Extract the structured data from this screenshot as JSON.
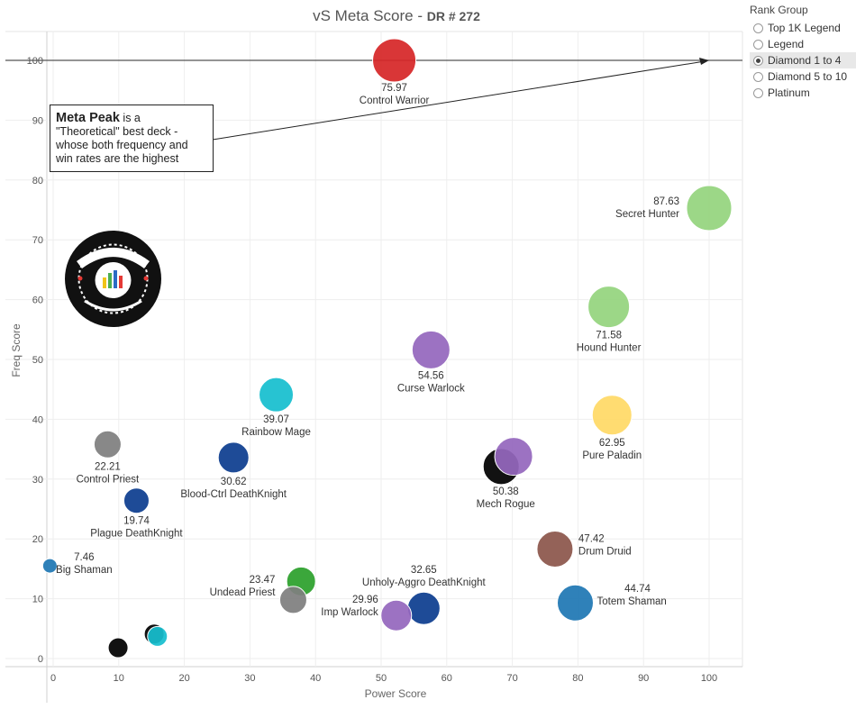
{
  "title": {
    "main": "vS Meta Score",
    "sep": " - ",
    "dr": "DR # 272"
  },
  "annotation": {
    "strong": "Meta Peak",
    "rest": " is a \"Theoretical\" best deck - whose both frequency and win rates are the highest"
  },
  "legend": {
    "title": "Rank Group",
    "items": [
      {
        "label": "Top 1K Legend",
        "selected": false
      },
      {
        "label": "Legend",
        "selected": false
      },
      {
        "label": "Diamond 1 to 4",
        "selected": true
      },
      {
        "label": "Diamond 5 to 10",
        "selected": false
      },
      {
        "label": "Platinum",
        "selected": false
      }
    ]
  },
  "logo": {
    "text": "DATA REAPER REPORT",
    "subtext": "VICIOUS SYNDICATE PRESENTS"
  },
  "chart_data": {
    "type": "scatter",
    "xlabel": "Power Score",
    "ylabel": "Freq Score",
    "xlim": [
      0,
      100
    ],
    "ylim": [
      0,
      100
    ],
    "xticks": [
      0,
      10,
      20,
      30,
      40,
      50,
      60,
      70,
      80,
      90,
      100
    ],
    "yticks": [
      0,
      10,
      20,
      30,
      40,
      50,
      60,
      70,
      80,
      90,
      100
    ],
    "grid": true,
    "reference_line_y": 100,
    "meta_peak": {
      "x": 100,
      "y": 100
    },
    "points": [
      {
        "name": "Control Warrior",
        "value": "75.97",
        "x": 52.0,
        "y": 100.0,
        "color": "#d62728",
        "size": 24
      },
      {
        "name": "Secret Hunter",
        "value": "87.63",
        "x": 100.0,
        "y": 75.3,
        "color": "#95d47e",
        "size": 25
      },
      {
        "name": "Hound Hunter",
        "value": "71.58",
        "x": 84.7,
        "y": 58.8,
        "color": "#95d47e",
        "size": 23
      },
      {
        "name": "Curse Warlock",
        "value": "54.56",
        "x": 57.6,
        "y": 51.6,
        "color": "#9467bd",
        "size": 21
      },
      {
        "name": "Pure Paladin",
        "value": "62.95",
        "x": 85.2,
        "y": 40.7,
        "color": "#ffd966",
        "size": 22
      },
      {
        "name": "Rainbow Mage",
        "value": "39.07",
        "x": 34.0,
        "y": 44.1,
        "color": "#17becf",
        "size": 19
      },
      {
        "name": "Control Priest",
        "value": "22.21",
        "x": 8.3,
        "y": 35.8,
        "color": "#7f7f7f",
        "size": 15
      },
      {
        "name": "Blood-Ctrl DeathKnight",
        "value": "30.62",
        "x": 27.5,
        "y": 33.6,
        "color": "#0d3d8f",
        "size": 17
      },
      {
        "name": "Mech Rogue",
        "value": "50.38",
        "x": 68.3,
        "y": 32.1,
        "color": "#000000",
        "size": 20
      },
      {
        "name": "",
        "value": "",
        "x": 70.2,
        "y": 33.8,
        "color": "#9467bd",
        "size": 21
      },
      {
        "name": "Plague DeathKnight",
        "value": "19.74",
        "x": 12.7,
        "y": 26.4,
        "color": "#0d3d8f",
        "size": 14
      },
      {
        "name": "Drum Druid",
        "value": "47.42",
        "x": 76.5,
        "y": 18.3,
        "color": "#8c564b",
        "size": 20
      },
      {
        "name": "Big Shaman",
        "value": "7.46",
        "x": -0.5,
        "y": 15.5,
        "color": "#1f77b4",
        "size": 8
      },
      {
        "name": "",
        "value": "",
        "x": 37.8,
        "y": 12.9,
        "color": "#2ca02c",
        "size": 16
      },
      {
        "name": "Undead Priest",
        "value": "23.47",
        "x": 36.6,
        "y": 9.8,
        "color": "#7f7f7f",
        "size": 15
      },
      {
        "name": "Unholy-Aggro DeathKnight",
        "value": "32.65",
        "x": 56.5,
        "y": 8.4,
        "color": "#0d3d8f",
        "size": 18
      },
      {
        "name": "Imp Warlock",
        "value": "29.96",
        "x": 52.3,
        "y": 7.2,
        "color": "#9467bd",
        "size": 17
      },
      {
        "name": "Totem Shaman",
        "value": "44.74",
        "x": 79.6,
        "y": 9.3,
        "color": "#1f77b4",
        "size": 20
      },
      {
        "name": "",
        "value": "",
        "x": 9.9,
        "y": 1.8,
        "color": "#000000",
        "size": 11
      },
      {
        "name": "",
        "value": "",
        "x": 15.4,
        "y": 4.1,
        "color": "#000000",
        "size": 11
      },
      {
        "name": "",
        "value": "",
        "x": 15.9,
        "y": 3.7,
        "color": "#17becf",
        "size": 11
      }
    ]
  }
}
